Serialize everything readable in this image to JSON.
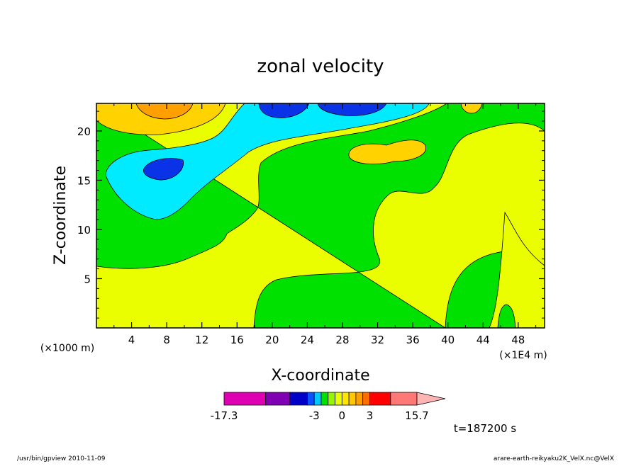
{
  "chart_data": {
    "type": "contour",
    "title": "zonal velocity",
    "xlabel": "X-coordinate",
    "ylabel": "Z-coordinate",
    "x_unit_label": "(×1E4 m)",
    "y_unit_label": "(×1000 m)",
    "x_ticks": [
      "4",
      "8",
      "12",
      "16",
      "20",
      "24",
      "28",
      "32",
      "36",
      "40",
      "44",
      "48"
    ],
    "y_ticks": [
      "5",
      "10",
      "15",
      "20"
    ],
    "xlim": [
      0,
      51
    ],
    "ylim": [
      0,
      22.8
    ],
    "colorbar": {
      "tick_labels": [
        {
          "label": "-17.3",
          "value": -17.3
        },
        {
          "label": "-3",
          "value": -3
        },
        {
          "label": "0",
          "value": 0
        },
        {
          "label": "3",
          "value": 3
        },
        {
          "label": "15.7",
          "value": 15.7
        }
      ],
      "levels": [
        -17.3,
        -12,
        -7,
        -4.5,
        -3,
        -2.3,
        -1.5,
        -0.7,
        0,
        0.7,
        1.5,
        2.3,
        3,
        5,
        9,
        15.7
      ],
      "colors": [
        "#e000b4",
        "#8000b4",
        "#0000c8",
        "#0a50ff",
        "#00c8ff",
        "#00e100",
        "#96f500",
        "#eafe00",
        "#ffe600",
        "#ffc800",
        "#ffa000",
        "#ff6e00",
        "#ff0000",
        "#ff7878",
        "#ffb4b4"
      ]
    },
    "regions": [
      {
        "name": "yellow-region",
        "color": "#eafe00",
        "level_range": [
          0,
          0.7
        ]
      },
      {
        "name": "green-region",
        "color": "#00e100",
        "level_range": [
          -1.5,
          0
        ]
      },
      {
        "name": "cyan-region",
        "color": "#00ebff",
        "level_range": [
          -3,
          -1.5
        ]
      },
      {
        "name": "blue-region",
        "color": "#0a32e6",
        "level_range": [
          -4.5,
          -3
        ]
      },
      {
        "name": "gold-region",
        "color": "#ffd200",
        "level_range": [
          0.7,
          2.3
        ]
      },
      {
        "name": "orange-region",
        "color": "#ffa000",
        "level_range": [
          2.3,
          3
        ]
      }
    ],
    "annotation": "t=187200 s"
  },
  "footer": {
    "left": "/usr/bin/gpview   2010-11-09",
    "right": "arare-earth-reikyaku2K_VelX.nc@VelX"
  }
}
